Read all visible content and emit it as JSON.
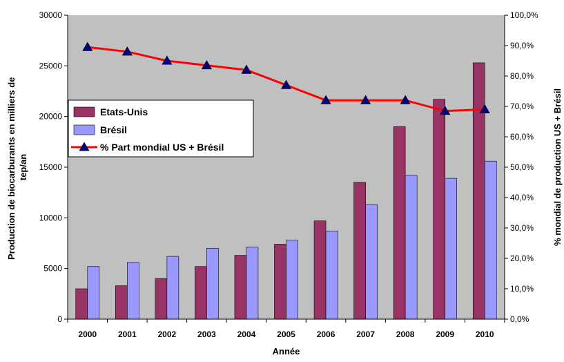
{
  "chart_data": {
    "type": "bar",
    "categories": [
      "2000",
      "2001",
      "2002",
      "2003",
      "2004",
      "2005",
      "2006",
      "2007",
      "2008",
      "2009",
      "2010"
    ],
    "series": [
      {
        "name": "Etats-Unis",
        "kind": "bar",
        "axis": "left",
        "color": "#993366",
        "values": [
          3000,
          3300,
          4000,
          5200,
          6300,
          7400,
          9700,
          13500,
          19000,
          21700,
          25300
        ]
      },
      {
        "name": "Brésil",
        "kind": "bar",
        "axis": "left",
        "color": "#9999ff",
        "values": [
          5200,
          5600,
          6200,
          7000,
          7100,
          7800,
          8700,
          11300,
          14200,
          13900,
          15600
        ]
      },
      {
        "name": "% Part mondial US + Brésil",
        "kind": "line",
        "axis": "right",
        "marker": "triangle",
        "color": "#ff0000",
        "marker_color": "#000080",
        "values": [
          89.5,
          88.0,
          85.0,
          83.5,
          82.0,
          77.0,
          72.0,
          72.0,
          72.0,
          68.5,
          69.0
        ]
      }
    ],
    "xlabel": "Année",
    "ylabel": "Production de biocarburants en milliers de tep/an",
    "ylabel_lines": [
      "Production de biocarburants en milliers de",
      "tep/an"
    ],
    "y2label": "% mondial de production US + Brésil",
    "ylim": [
      0,
      30000
    ],
    "yticks": [
      "0",
      "5000",
      "10000",
      "15000",
      "20000",
      "25000",
      "30000"
    ],
    "y2lim": [
      0,
      100
    ],
    "y2ticks": [
      "0,0%",
      "10,0%",
      "20,0%",
      "30,0%",
      "40,0%",
      "50,0%",
      "60,0%",
      "70,0%",
      "80,0%",
      "90,0%",
      "100,0%"
    ],
    "legend_position": "left",
    "plot_background": "#c0c0c0",
    "grid": false
  }
}
